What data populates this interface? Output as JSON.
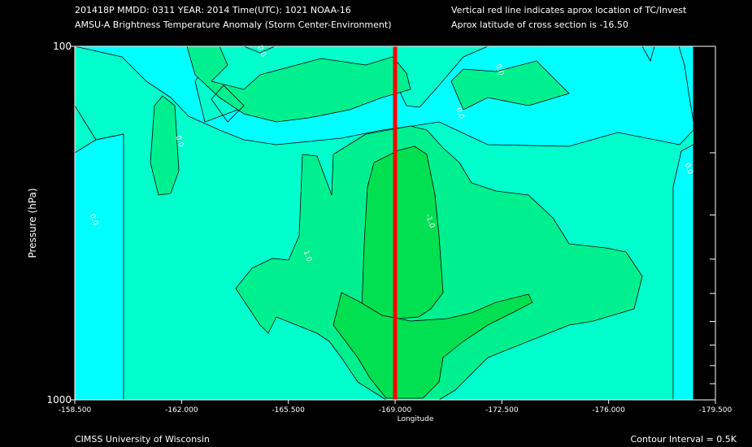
{
  "header": {
    "line1": "201418P  MMDD: 0311 YEAR: 2014 Time(UTC): 1021 NOAA-16",
    "line2": "AMSU-A Brightness Temperature Anomaly (Storm Center-Environment)",
    "line3": "Vertical red line indicates aprox location of TC/Invest",
    "line4": "Aprox latitude of cross section is -16.50"
  },
  "footer": {
    "left": "CIMSS University of Wisconsin",
    "right": "Contour Interval = 0.5K"
  },
  "colors": {
    "background": "#000000",
    "level_neg": "#00ffff",
    "level_zero": "#00ffcc",
    "level_one": "#00f090",
    "level_high": "#00e050",
    "tc_line": "#ff0000"
  },
  "chart_data": {
    "type": "heatmap",
    "xlabel": "Longitude",
    "ylabel": "Pressure (hPa)",
    "xlim": [
      -158.5,
      -179.5
    ],
    "ylim": [
      1000,
      100
    ],
    "y_scale": "log",
    "x_ticks": [
      "-158.500",
      "-162.000",
      "-165.500",
      "-169.000",
      "-172.500",
      "-176.000",
      "-179.500"
    ],
    "y_ticks": [
      "1000",
      "100"
    ],
    "tc_longitude": -169.0,
    "contour_interval_K": 0.5,
    "contour_labels": [
      {
        "text": "0.0",
        "lon": -164.5,
        "p": 100
      },
      {
        "text": "0.0",
        "lon": -161.8,
        "p": 180
      },
      {
        "text": "0.0",
        "lon": -159.0,
        "p": 300
      },
      {
        "text": "0.0",
        "lon": -172.3,
        "p": 113
      },
      {
        "text": "0.0",
        "lon": -171.0,
        "p": 150
      },
      {
        "text": "0.0",
        "lon": -178.5,
        "p": 215
      },
      {
        "text": "-1.0",
        "lon": -170.0,
        "p": 300
      },
      {
        "text": "1.0",
        "lon": -166.0,
        "p": 380
      }
    ]
  }
}
